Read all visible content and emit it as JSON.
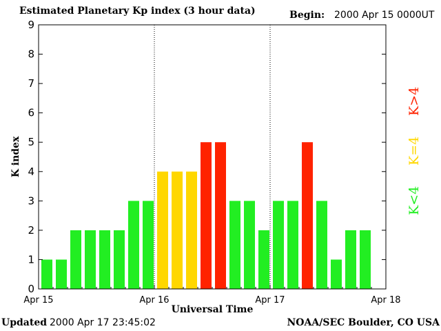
{
  "header": {
    "title": "Estimated Planetary Kp index (3 hour data)",
    "begin_label": "Begin:",
    "begin_value": "2000 Apr 15 0000UT"
  },
  "footer": {
    "updated_label": "Updated",
    "updated_value": "2000 Apr 17 23:45:02",
    "credit": "NOAA/SEC Boulder, CO USA"
  },
  "legend": {
    "low": "K<4",
    "mid": "K=4",
    "high": "K>4"
  },
  "colors": {
    "low": "#22ee22",
    "mid": "#ffd700",
    "high": "#ff2200",
    "axis": "#000000"
  },
  "chart_data": {
    "type": "bar",
    "title": "Estimated Planetary Kp index (3 hour data)",
    "xlabel": "Universal Time",
    "ylabel": "K index",
    "ylim": [
      0,
      9
    ],
    "y_ticks": [
      "0",
      "1",
      "2",
      "3",
      "4",
      "5",
      "6",
      "7",
      "8",
      "9"
    ],
    "x_ticks": [
      "Apr 15",
      "Apr 16",
      "Apr 17",
      "Apr 18"
    ],
    "day_separators": [
      "Apr 16",
      "Apr 17"
    ],
    "interval_hours": 3,
    "values": [
      1,
      1,
      2,
      2,
      2,
      2,
      3,
      3,
      4,
      4,
      4,
      5,
      5,
      3,
      3,
      2,
      3,
      3,
      5,
      3,
      1,
      2,
      2
    ]
  }
}
